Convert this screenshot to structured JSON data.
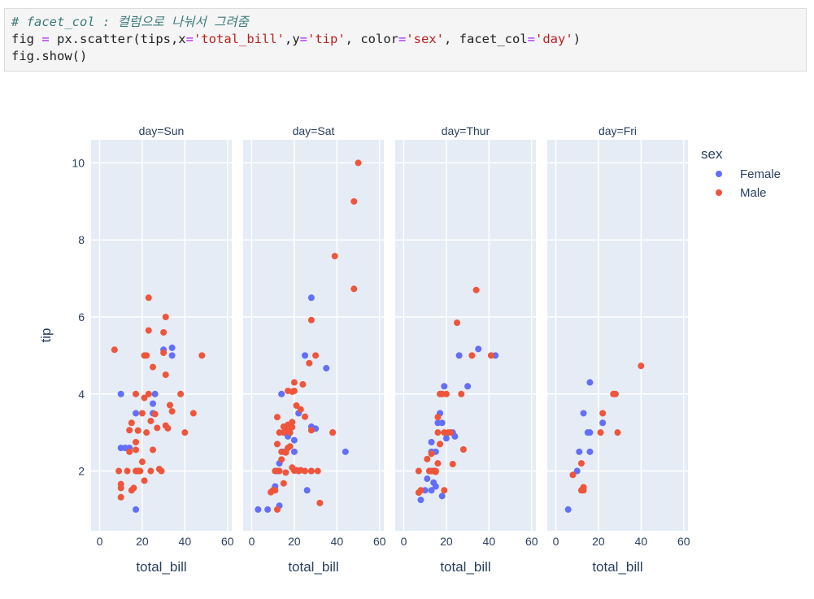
{
  "code": {
    "comment": "# facet_col : 컬럼으로 나눠서 그려줌",
    "line2_parts": [
      "fig ",
      "=",
      " px.scatter(tips,x",
      "=",
      "'total_bill'",
      ",y",
      "=",
      "'tip'",
      ", color",
      "=",
      "'sex'",
      ", facet_col",
      "=",
      "'day'",
      ")"
    ],
    "line3": "fig.show()"
  },
  "chart_data": {
    "type": "scatter",
    "facets": [
      "day=Sun",
      "day=Sat",
      "day=Thur",
      "day=Fri"
    ],
    "xlabel": "total_bill",
    "ylabel": "tip",
    "xlim": [
      -4,
      62
    ],
    "ylim": [
      0.45,
      10.6
    ],
    "xticks": [
      0,
      20,
      40,
      60
    ],
    "yticks": [
      2,
      4,
      6,
      8,
      10
    ],
    "legend": {
      "title": "sex",
      "position": "top-right"
    },
    "colors": {
      "Female": "#636efa",
      "Male": "#ef553b",
      "plot_bg": "#e5ecf6"
    },
    "series": [
      {
        "name": "Female",
        "points": {
          "day=Sun": [
            [
              10,
              4
            ],
            [
              10,
              2.6
            ],
            [
              12,
              2.6
            ],
            [
              14,
              2.6
            ],
            [
              17,
              3.5
            ],
            [
              25,
              3.5
            ],
            [
              25,
              3.75
            ],
            [
              26,
              4
            ],
            [
              30,
              5.15
            ],
            [
              34,
              5.2
            ],
            [
              34,
              5
            ],
            [
              17,
              1
            ]
          ],
          "day=Sat": [
            [
              3,
              1
            ],
            [
              7.5,
              1
            ],
            [
              13,
              1.1
            ],
            [
              11,
              1.6
            ],
            [
              12,
              2
            ],
            [
              13,
              2.2
            ],
            [
              15,
              2.5
            ],
            [
              16,
              2.5
            ],
            [
              17,
              2.9
            ],
            [
              18,
              3
            ],
            [
              20,
              2.5
            ],
            [
              20,
              2.8
            ],
            [
              22,
              3.5
            ],
            [
              28,
              3.15
            ],
            [
              30,
              3.1
            ],
            [
              28,
              6.5
            ],
            [
              35,
              4.67
            ],
            [
              44,
              2.5
            ],
            [
              26,
              1.5
            ],
            [
              28,
              2
            ],
            [
              14,
              4
            ],
            [
              25,
              5
            ]
          ],
          "day=Thur": [
            [
              8,
              1.25
            ],
            [
              10,
              1.5
            ],
            [
              11,
              1.8
            ],
            [
              12,
              2
            ],
            [
              13,
              2.5
            ],
            [
              13,
              2.75
            ],
            [
              14,
              2
            ],
            [
              15,
              2.5
            ],
            [
              16,
              3.25
            ],
            [
              17,
              3.5
            ],
            [
              18,
              3.25
            ],
            [
              19,
              4.2
            ],
            [
              18,
              1.35
            ],
            [
              20,
              2.85
            ],
            [
              23,
              3
            ],
            [
              24,
              2.9
            ],
            [
              26,
              5
            ],
            [
              30,
              4.2
            ],
            [
              35,
              5.17
            ],
            [
              43,
              5
            ],
            [
              15,
              1.6
            ],
            [
              13,
              1.5
            ],
            [
              14,
              1.7
            ]
          ],
          "day=Fri": [
            [
              5.8,
              1
            ],
            [
              10,
              2
            ],
            [
              11,
              2.5
            ],
            [
              13,
              3.5
            ],
            [
              15,
              3
            ],
            [
              16,
              4.3
            ],
            [
              16,
              2.5
            ],
            [
              16,
              3
            ],
            [
              22,
              3.25
            ]
          ]
        }
      },
      {
        "name": "Male",
        "points": {
          "day=Sun": [
            [
              7,
              5.15
            ],
            [
              9,
              2
            ],
            [
              10,
              1.66
            ],
            [
              10,
              1.32
            ],
            [
              10,
              1.56
            ],
            [
              13,
              2
            ],
            [
              14,
              2.5
            ],
            [
              14,
              3.06
            ],
            [
              15,
              3.25
            ],
            [
              15,
              1.5
            ],
            [
              16,
              1.56
            ],
            [
              17,
              2.55
            ],
            [
              17,
              2
            ],
            [
              17,
              4
            ],
            [
              17,
              2.75
            ],
            [
              18,
              2
            ],
            [
              18,
              3.05
            ],
            [
              18,
              2
            ],
            [
              19,
              2
            ],
            [
              20,
              3.5
            ],
            [
              20,
              2.24
            ],
            [
              21,
              5
            ],
            [
              21,
              1.75
            ],
            [
              21,
              3.9
            ],
            [
              22,
              3
            ],
            [
              22,
              5
            ],
            [
              23,
              4
            ],
            [
              23,
              6.5
            ],
            [
              23,
              5.65
            ],
            [
              24,
              3.3
            ],
            [
              24,
              2
            ],
            [
              25,
              4.7
            ],
            [
              25,
              2.55
            ],
            [
              26,
              3.48
            ],
            [
              27,
              3.12
            ],
            [
              28,
              2.05
            ],
            [
              29,
              2
            ],
            [
              30,
              5.6
            ],
            [
              30,
              5.07
            ],
            [
              31,
              3.18
            ],
            [
              31,
              4.5
            ],
            [
              31,
              6
            ],
            [
              32,
              3.11
            ],
            [
              33,
              3.71
            ],
            [
              34,
              3.55
            ],
            [
              38,
              4
            ],
            [
              40,
              3
            ],
            [
              44,
              3.5
            ],
            [
              48,
              5
            ]
          ],
          "day=Sat": [
            [
              9,
              1.45
            ],
            [
              10,
              1.5
            ],
            [
              11,
              1.5
            ],
            [
              11,
              2
            ],
            [
              12,
              1
            ],
            [
              12,
              3.4
            ],
            [
              12,
              2.7
            ],
            [
              13,
              2
            ],
            [
              13,
              3
            ],
            [
              14,
              2.3
            ],
            [
              14,
              2.5
            ],
            [
              15,
              1.68
            ],
            [
              15,
              3
            ],
            [
              15,
              3.15
            ],
            [
              16,
              1.96
            ],
            [
              16,
              2.48
            ],
            [
              17,
              3.2
            ],
            [
              17,
              4.08
            ],
            [
              17,
              3.08
            ],
            [
              17,
              2.6
            ],
            [
              18,
              3
            ],
            [
              18,
              2.64
            ],
            [
              18,
              3.18
            ],
            [
              19,
              3.27
            ],
            [
              19,
              3.14
            ],
            [
              19,
              2.09
            ],
            [
              19,
              4.06
            ],
            [
              20,
              2.01
            ],
            [
              20,
              4.3
            ],
            [
              20,
              4.08
            ],
            [
              21,
              2.02
            ],
            [
              21,
              3.7
            ],
            [
              22,
              2
            ],
            [
              23,
              3.6
            ],
            [
              23,
              2.02
            ],
            [
              24,
              4.25
            ],
            [
              25,
              3.41
            ],
            [
              25,
              2
            ],
            [
              27,
              4.8
            ],
            [
              28,
              3.06
            ],
            [
              28,
              2
            ],
            [
              28,
              5.92
            ],
            [
              30,
              5
            ],
            [
              31,
              2
            ],
            [
              32,
              1.17
            ],
            [
              38,
              3
            ],
            [
              39,
              7.58
            ],
            [
              48,
              6.73
            ],
            [
              48,
              9
            ],
            [
              50,
              10
            ],
            [
              38,
              3
            ]
          ],
          "day=Thur": [
            [
              7,
              2
            ],
            [
              7,
              1.44
            ],
            [
              8,
              1.5
            ],
            [
              11,
              2.31
            ],
            [
              12,
              2
            ],
            [
              13,
              2
            ],
            [
              13,
              2.45
            ],
            [
              14,
              2
            ],
            [
              15,
              2
            ],
            [
              15,
              1.98
            ],
            [
              16,
              3
            ],
            [
              16,
              2.2
            ],
            [
              17,
              2.7
            ],
            [
              17,
              4
            ],
            [
              18,
              4
            ],
            [
              19,
              1.5
            ],
            [
              19,
              3
            ],
            [
              20,
              4
            ],
            [
              21,
              3
            ],
            [
              22,
              3
            ],
            [
              23,
              2.18
            ],
            [
              25,
              5.85
            ],
            [
              27,
              4
            ],
            [
              28,
              2.56
            ],
            [
              32,
              5
            ],
            [
              34,
              6.7
            ],
            [
              41,
              5
            ],
            [
              16,
              3.4
            ]
          ],
          "day=Fri": [
            [
              8,
              1.9
            ],
            [
              12,
              1.5
            ],
            [
              12,
              2.2
            ],
            [
              13,
              1.58
            ],
            [
              13,
              1.5
            ],
            [
              21,
              3
            ],
            [
              22,
              3.5
            ],
            [
              28,
              4
            ],
            [
              40,
              4.73
            ],
            [
              29,
              3
            ],
            [
              27,
              4
            ]
          ]
        }
      }
    ]
  }
}
